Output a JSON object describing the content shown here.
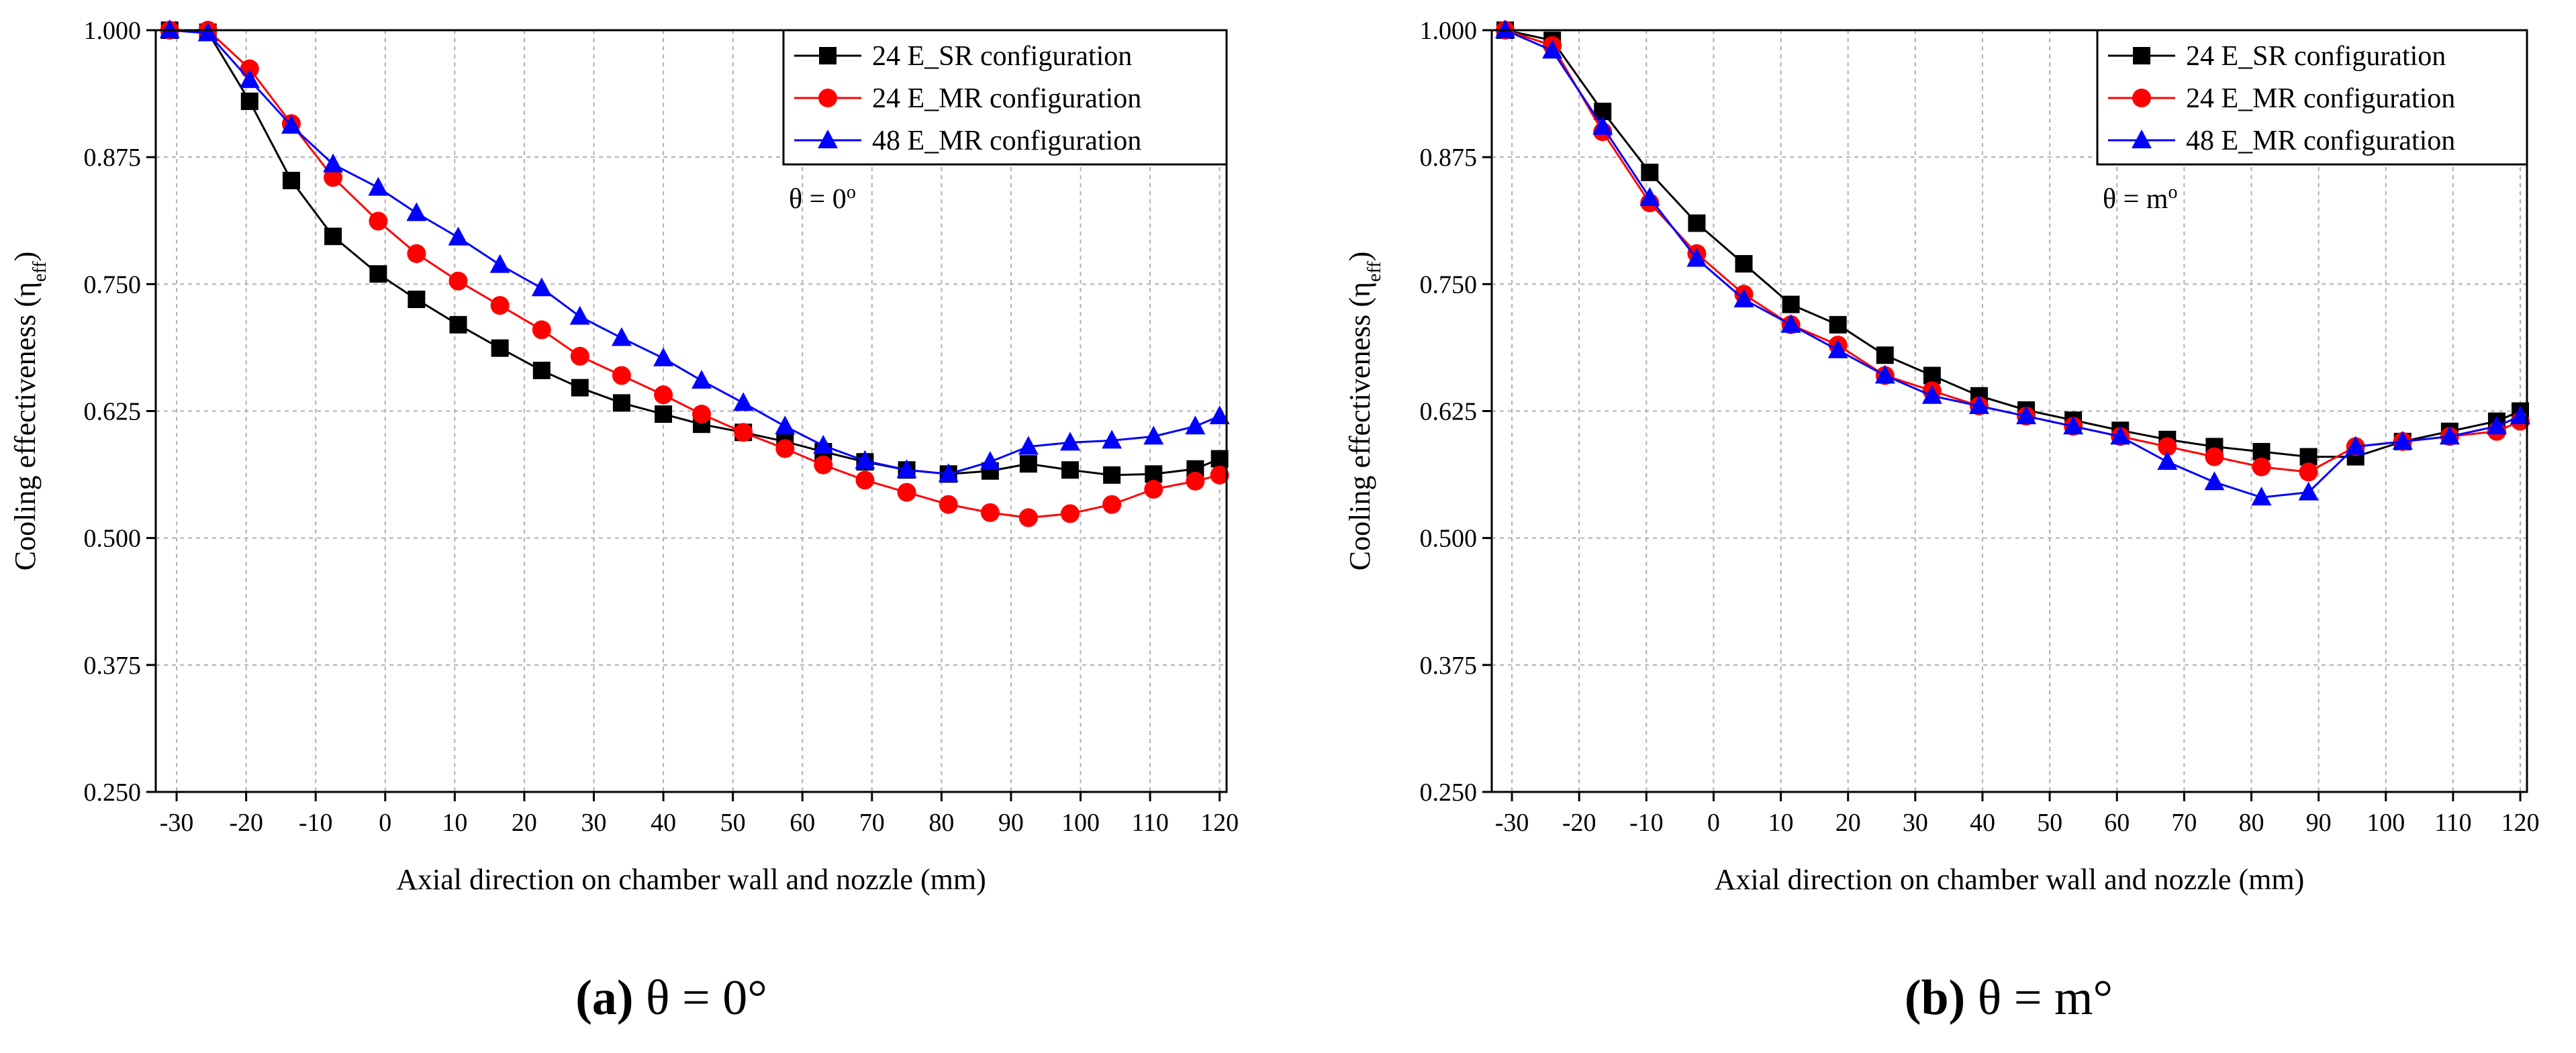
{
  "colors": {
    "sr": "#000000",
    "mr24": "#ff0000",
    "mr48": "#0000ff",
    "grid": "#b0b0b0"
  },
  "captions": [
    {
      "label": "(a)",
      "text": "θ = 0°"
    },
    {
      "label": "(b)",
      "text": "θ = m°"
    }
  ],
  "chart_data": [
    {
      "type": "line",
      "xlabel": "Axial direction on chamber wall and nozzle (mm)",
      "ylabel": "Cooling effectiveness (η",
      "ylabel_sub": "eff",
      "ylabel_end": ")",
      "annotation": "θ = 0",
      "annotation_sup": "o",
      "xlim": [
        -33,
        121
      ],
      "ylim": [
        0.25,
        1.0
      ],
      "xticks": [
        -30,
        -20,
        -10,
        0,
        10,
        20,
        30,
        40,
        50,
        60,
        70,
        80,
        90,
        100,
        110,
        120
      ],
      "yticks": [
        0.25,
        0.375,
        0.5,
        0.625,
        0.75,
        0.875,
        1.0
      ],
      "ytick_labels": [
        "0.250",
        "0.375",
        "0.500",
        "0.625",
        "0.750",
        "0.875",
        "1.000"
      ],
      "grid": true,
      "legend": "top-right",
      "series": [
        {
          "name": "24 E_SR configuration",
          "marker": "square",
          "color": "#000000",
          "x": [
            -31,
            -25.5,
            -19.5,
            -13.5,
            -7.5,
            -1,
            4.5,
            10.5,
            16.5,
            22.5,
            28,
            34,
            40,
            45.5,
            51.5,
            57.5,
            63,
            69,
            75,
            81,
            87,
            92.5,
            98.5,
            104.5,
            110.5,
            116.5,
            120
          ],
          "y": [
            1.0,
            0.998,
            0.93,
            0.852,
            0.797,
            0.76,
            0.735,
            0.71,
            0.687,
            0.665,
            0.648,
            0.633,
            0.622,
            0.612,
            0.604,
            0.595,
            0.585,
            0.575,
            0.567,
            0.563,
            0.566,
            0.573,
            0.567,
            0.562,
            0.563,
            0.568,
            0.578
          ]
        },
        {
          "name": "24 E_MR configuration",
          "marker": "circle",
          "color": "#ff0000",
          "x": [
            -31,
            -25.5,
            -19.5,
            -13.5,
            -7.5,
            -1,
            4.5,
            10.5,
            16.5,
            22.5,
            28,
            34,
            40,
            45.5,
            51.5,
            57.5,
            63,
            69,
            75,
            81,
            87,
            92.5,
            98.5,
            104.5,
            110.5,
            116.5,
            120
          ],
          "y": [
            1.0,
            1.0,
            0.962,
            0.908,
            0.855,
            0.812,
            0.78,
            0.753,
            0.729,
            0.705,
            0.679,
            0.66,
            0.641,
            0.622,
            0.604,
            0.588,
            0.572,
            0.557,
            0.545,
            0.533,
            0.525,
            0.52,
            0.524,
            0.533,
            0.548,
            0.556,
            0.562
          ]
        },
        {
          "name": "48 E_MR configuration",
          "marker": "triangle",
          "color": "#0000ff",
          "x": [
            -31,
            -25.5,
            -19.5,
            -13.5,
            -7.5,
            -1,
            4.5,
            10.5,
            16.5,
            22.5,
            28,
            34,
            40,
            45.5,
            51.5,
            57.5,
            63,
            69,
            75,
            81,
            87,
            92.5,
            98.5,
            104.5,
            110.5,
            116.5,
            120
          ],
          "y": [
            1.0,
            0.997,
            0.951,
            0.906,
            0.868,
            0.845,
            0.82,
            0.796,
            0.769,
            0.746,
            0.718,
            0.697,
            0.677,
            0.655,
            0.633,
            0.61,
            0.591,
            0.576,
            0.567,
            0.563,
            0.575,
            0.59,
            0.594,
            0.596,
            0.6,
            0.61,
            0.62
          ]
        }
      ]
    },
    {
      "type": "line",
      "xlabel": "Axial direction on chamber wall and nozzle (mm)",
      "ylabel": "Cooling effectiveness (η",
      "ylabel_sub": "eff",
      "ylabel_end": ")",
      "annotation": "θ = m",
      "annotation_sup": "o",
      "xlim": [
        -33,
        121
      ],
      "ylim": [
        0.25,
        1.0
      ],
      "xticks": [
        -30,
        -20,
        -10,
        0,
        10,
        20,
        30,
        40,
        50,
        60,
        70,
        80,
        90,
        100,
        110,
        120
      ],
      "yticks": [
        0.25,
        0.375,
        0.5,
        0.625,
        0.75,
        0.875,
        1.0
      ],
      "ytick_labels": [
        "0.250",
        "0.375",
        "0.500",
        "0.625",
        "0.750",
        "0.875",
        "1.000"
      ],
      "grid": true,
      "legend": "top-right",
      "series": [
        {
          "name": "24 E_SR configuration",
          "marker": "square",
          "color": "#000000",
          "x": [
            -31,
            -24,
            -16.5,
            -9.5,
            -2.5,
            4.5,
            11.5,
            18.5,
            25.5,
            32.5,
            39.5,
            46.5,
            53.5,
            60.5,
            67.5,
            74.5,
            81.5,
            88.5,
            95.5,
            102.5,
            109.5,
            116.5,
            120
          ],
          "y": [
            1.0,
            0.99,
            0.92,
            0.86,
            0.81,
            0.77,
            0.73,
            0.71,
            0.68,
            0.66,
            0.64,
            0.626,
            0.616,
            0.606,
            0.597,
            0.59,
            0.585,
            0.58,
            0.58,
            0.595,
            0.605,
            0.615,
            0.625
          ]
        },
        {
          "name": "24 E_MR configuration",
          "marker": "circle",
          "color": "#ff0000",
          "x": [
            -31,
            -24,
            -16.5,
            -9.5,
            -2.5,
            4.5,
            11.5,
            18.5,
            25.5,
            32.5,
            39.5,
            46.5,
            53.5,
            60.5,
            67.5,
            74.5,
            81.5,
            88.5,
            95.5,
            102.5,
            109.5,
            116.5,
            120
          ],
          "y": [
            1.0,
            0.985,
            0.9,
            0.83,
            0.78,
            0.74,
            0.71,
            0.69,
            0.66,
            0.645,
            0.63,
            0.62,
            0.61,
            0.6,
            0.59,
            0.58,
            0.57,
            0.565,
            0.59,
            0.595,
            0.6,
            0.605,
            0.615
          ]
        },
        {
          "name": "48 E_MR configuration",
          "marker": "triangle",
          "color": "#0000ff",
          "x": [
            -31,
            -24,
            -16.5,
            -9.5,
            -2.5,
            4.5,
            11.5,
            18.5,
            25.5,
            32.5,
            39.5,
            46.5,
            53.5,
            60.5,
            67.5,
            74.5,
            81.5,
            88.5,
            95.5,
            102.5,
            109.5,
            116.5,
            120
          ],
          "y": [
            1.0,
            0.98,
            0.905,
            0.835,
            0.775,
            0.735,
            0.71,
            0.685,
            0.66,
            0.64,
            0.63,
            0.62,
            0.61,
            0.6,
            0.575,
            0.555,
            0.54,
            0.545,
            0.59,
            0.595,
            0.6,
            0.61,
            0.62
          ]
        }
      ]
    }
  ]
}
